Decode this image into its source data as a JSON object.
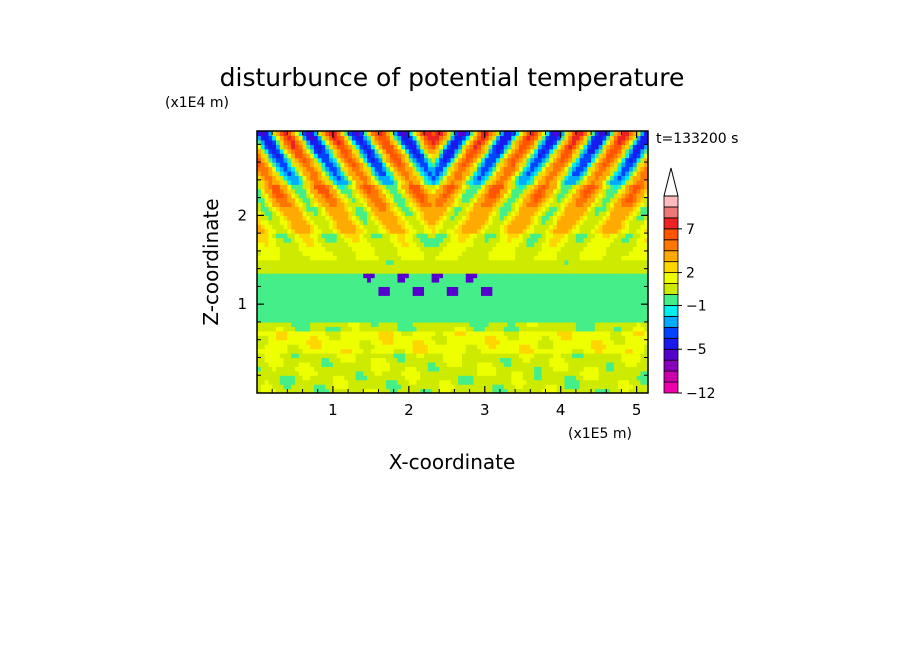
{
  "chart_data": {
    "type": "heatmap",
    "title": "disturbunce of potential temperature",
    "time_label": "t=133200 s",
    "xlabel": "X-coordinate",
    "ylabel": "Z-coordinate",
    "x_unit": "(x1E5 m)",
    "y_unit": "(x1E4 m)",
    "xlim": [
      0,
      5.15
    ],
    "ylim": [
      0,
      2.95
    ],
    "x_ticks": [
      "1",
      "2",
      "3",
      "4",
      "5"
    ],
    "x_tick_values": [
      1,
      2,
      3,
      4,
      5
    ],
    "y_ticks": [
      "1",
      "2"
    ],
    "y_tick_values": [
      1,
      2
    ],
    "colorbar": {
      "levels": [
        -12,
        -10,
        -8,
        -6,
        -5,
        -4,
        -3,
        -2,
        -1,
        0,
        1,
        2,
        3,
        5,
        6,
        7,
        8,
        9,
        10
      ],
      "labels": [
        "7",
        "2",
        "−1",
        "−5",
        "−12"
      ],
      "label_values": [
        7,
        2,
        -1,
        -5,
        -12
      ],
      "colors": [
        "#ee00aa",
        "#cc00aa",
        "#8800bb",
        "#5500cc",
        "#1a1aee",
        "#0044ff",
        "#00aaff",
        "#00eeee",
        "#44ee88",
        "#cceb00",
        "#eeff00",
        "#ffd700",
        "#ffaa00",
        "#ff7700",
        "#ff5500",
        "#ee2222",
        "#ee7777",
        "#ffbbbb"
      ],
      "extend": "max"
    },
    "band_values": [
      {
        "z_min": 0.0,
        "z_max": 0.2,
        "value": 0.5
      },
      {
        "z_min": 0.2,
        "z_max": 0.45,
        "value": 0.7
      },
      {
        "z_min": 0.45,
        "z_max": 0.7,
        "value": 1.5
      },
      {
        "z_min": 0.7,
        "z_max": 0.82,
        "value": 0.3
      },
      {
        "z_min": 0.82,
        "z_max": 1.35,
        "value": -0.5
      },
      {
        "z_min": 1.35,
        "z_max": 1.5,
        "value": 0.3
      },
      {
        "z_min": 1.5,
        "z_max": 1.8,
        "value": 1.0
      },
      {
        "z_min": 1.8,
        "z_max": 2.1,
        "value": 2.2
      },
      {
        "z_min": 2.1,
        "z_max": 2.35,
        "value": 2.8
      },
      {
        "z_min": 2.35,
        "z_max": 2.95,
        "value": 1.2
      }
    ]
  }
}
